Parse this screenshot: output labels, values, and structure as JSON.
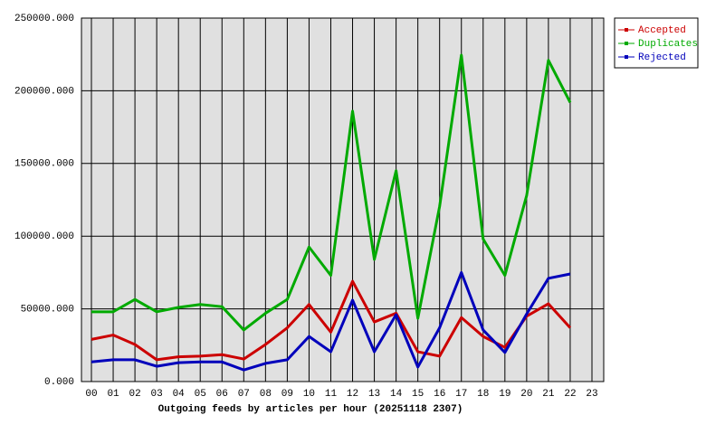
{
  "chart_data": {
    "type": "line",
    "xlabel": "Outgoing feeds by articles per hour (20251118 2307)",
    "categories": [
      "00",
      "01",
      "02",
      "03",
      "04",
      "05",
      "06",
      "07",
      "08",
      "09",
      "10",
      "11",
      "12",
      "13",
      "14",
      "15",
      "16",
      "17",
      "18",
      "19",
      "20",
      "21",
      "22",
      "23"
    ],
    "series": [
      {
        "name": "Accepted",
        "color": "#cc0000",
        "values": [
          29000,
          32000,
          25500,
          15000,
          17000,
          17500,
          18500,
          15500,
          25500,
          37000,
          53000,
          34000,
          69000,
          41000,
          47000,
          20500,
          17500,
          44000,
          31000,
          23500,
          45000,
          53500,
          37000,
          null
        ]
      },
      {
        "name": "Duplicates",
        "color": "#00aa00",
        "values": [
          48000,
          48000,
          56500,
          48000,
          51000,
          53000,
          51500,
          35500,
          47000,
          56500,
          92500,
          73000,
          186000,
          84000,
          145000,
          43500,
          120500,
          224500,
          98000,
          73000,
          128000,
          221000,
          192000,
          null
        ]
      },
      {
        "name": "Rejected",
        "color": "#0000bb",
        "values": [
          13500,
          15000,
          15000,
          10500,
          13000,
          13500,
          13500,
          8000,
          12500,
          15000,
          31000,
          20500,
          56000,
          20500,
          46000,
          10000,
          37000,
          75000,
          35500,
          20000,
          46500,
          71000,
          74000,
          null
        ]
      }
    ],
    "ylim": [
      0,
      250000
    ],
    "yticks": [
      {
        "value": 0,
        "label": "0.000"
      },
      {
        "value": 50000,
        "label": "50000.000"
      },
      {
        "value": 100000,
        "label": "100000.000"
      },
      {
        "value": 150000,
        "label": "150000.000"
      },
      {
        "value": 200000,
        "label": "200000.000"
      },
      {
        "value": 250000,
        "label": "250000.000"
      }
    ],
    "grid": true,
    "legend": "outside-top-right",
    "background": "#e0e0e0"
  }
}
